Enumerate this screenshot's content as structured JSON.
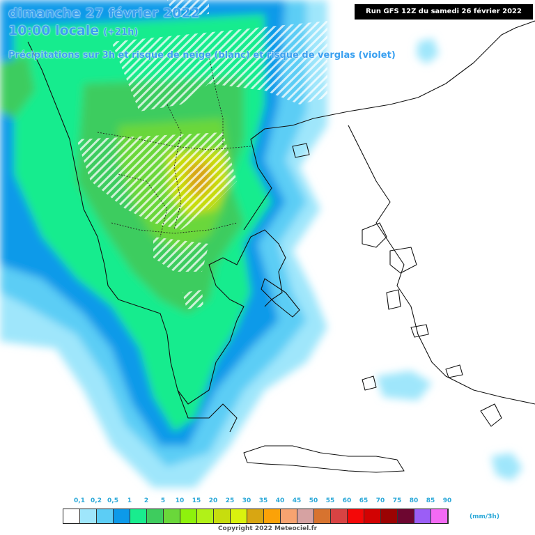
{
  "header": {
    "date": "dimanche 27 février 2022",
    "time": "10:00 locale",
    "lead": "(+21h)",
    "description": "Précipitations sur 3h et risque de neige (blanc) et risque de verglas (violet)"
  },
  "run_info": "Run GFS 12Z du samedi 26 février 2022",
  "legend": {
    "ticks": [
      "0,1",
      "0,2",
      "0,5",
      "1",
      "2",
      "5",
      "10",
      "15",
      "20",
      "25",
      "30",
      "35",
      "40",
      "45",
      "50",
      "55",
      "60",
      "65",
      "70",
      "75",
      "80",
      "85",
      "90"
    ],
    "colors": [
      "#ffffff",
      "#9fe6fb",
      "#5ccdf5",
      "#0d9ae9",
      "#19ec8e",
      "#3ecc5e",
      "#6ad73a",
      "#8ef20c",
      "#b1f118",
      "#c7dd0e",
      "#daf20e",
      "#d8a612",
      "#fba208",
      "#f7a370",
      "#d6a2a2",
      "#d7732f",
      "#d84343",
      "#f40808",
      "#d20202",
      "#9b0303",
      "#6d0630",
      "#9b5ef6",
      "#f36af4"
    ],
    "unit": "(mm/3h)"
  },
  "copyright": "Copyright 2022 Meteociel.fr"
}
